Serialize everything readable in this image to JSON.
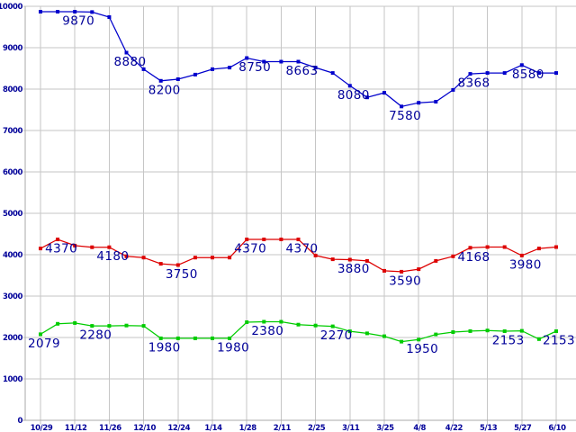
{
  "chart_data": {
    "type": "line",
    "title": "",
    "xlabel": "",
    "ylabel": "",
    "ylim": [
      0,
      10000
    ],
    "grid": true,
    "legend": "none",
    "background_color": "#ffffff",
    "grid_color": "#c6c6c6",
    "axis_color": "#aaaaaa",
    "tick_label_color": "#000099",
    "point_label_color": "#000099",
    "x_tick_labels": [
      "10/29",
      "11/12",
      "11/26",
      "12/10",
      "12/24",
      "1/14",
      "1/28",
      "2/11",
      "2/25",
      "3/11",
      "3/25",
      "4/8",
      "4/22",
      "5/13",
      "5/27",
      "6/10"
    ],
    "y_tick_values": [
      0,
      1000,
      2000,
      3000,
      4000,
      5000,
      6000,
      7000,
      8000,
      9000,
      10000
    ],
    "y_tick_labels": [
      "0",
      "1000",
      "2000",
      "3000",
      "4000",
      "5000",
      "6000",
      "7000",
      "8000",
      "9000",
      "10000"
    ],
    "points_between_ticks": 1,
    "series": [
      {
        "name": "blue",
        "color": "#0000cc",
        "values": [
          9870,
          9870,
          9870,
          9860,
          9740,
          8880,
          8480,
          8200,
          8240,
          8350,
          8480,
          8520,
          8750,
          8663,
          8663,
          8663,
          8520,
          8390,
          8080,
          7800,
          7910,
          7580,
          7670,
          7695,
          7980,
          8368,
          8390,
          8390,
          8580,
          8390,
          8390
        ],
        "labels": [
          {
            "index": 2,
            "text": "9870"
          },
          {
            "index": 5,
            "text": "8880"
          },
          {
            "index": 7,
            "text": "8200"
          },
          {
            "index": 12,
            "text": "8750",
            "dx": 9
          },
          {
            "index": 15,
            "text": "8663"
          },
          {
            "index": 18,
            "text": "8080"
          },
          {
            "index": 21,
            "text": "7580"
          },
          {
            "index": 25,
            "text": "8368"
          },
          {
            "index": 28,
            "text": "8580",
            "dx": 7
          }
        ]
      },
      {
        "name": "red",
        "color": "#dd0000",
        "values": [
          4150,
          4370,
          4220,
          4180,
          4180,
          3960,
          3930,
          3780,
          3750,
          3930,
          3930,
          3930,
          4370,
          4370,
          4370,
          4370,
          3980,
          3890,
          3880,
          3850,
          3610,
          3590,
          3650,
          3850,
          3960,
          4168,
          4185,
          4185,
          3980,
          4150,
          4185
        ],
        "labels": [
          {
            "index": 1,
            "text": "4370"
          },
          {
            "index": 4,
            "text": "4180"
          },
          {
            "index": 8,
            "text": "3750"
          },
          {
            "index": 12,
            "text": "4370"
          },
          {
            "index": 15,
            "text": "4370"
          },
          {
            "index": 18,
            "text": "3880"
          },
          {
            "index": 21,
            "text": "3590"
          },
          {
            "index": 25,
            "text": "4168"
          },
          {
            "index": 28,
            "text": "3980"
          }
        ]
      },
      {
        "name": "green",
        "color": "#00cc00",
        "values": [
          2079,
          2330,
          2350,
          2280,
          2280,
          2290,
          2280,
          1980,
          1980,
          1980,
          1980,
          1980,
          2370,
          2380,
          2380,
          2310,
          2290,
          2270,
          2150,
          2100,
          2030,
          1900,
          1950,
          2075,
          2130,
          2155,
          2170,
          2153,
          2160,
          1960,
          2153
        ],
        "labels": [
          {
            "index": 0,
            "text": "2079"
          },
          {
            "index": 3,
            "text": "2280"
          },
          {
            "index": 7,
            "text": "1980"
          },
          {
            "index": 11,
            "text": "1980"
          },
          {
            "index": 13,
            "text": "2380"
          },
          {
            "index": 17,
            "text": "2270"
          },
          {
            "index": 22,
            "text": "1950"
          },
          {
            "index": 27,
            "text": "2153"
          },
          {
            "index": 30,
            "text": "2153",
            "dx": 3
          }
        ]
      }
    ]
  }
}
